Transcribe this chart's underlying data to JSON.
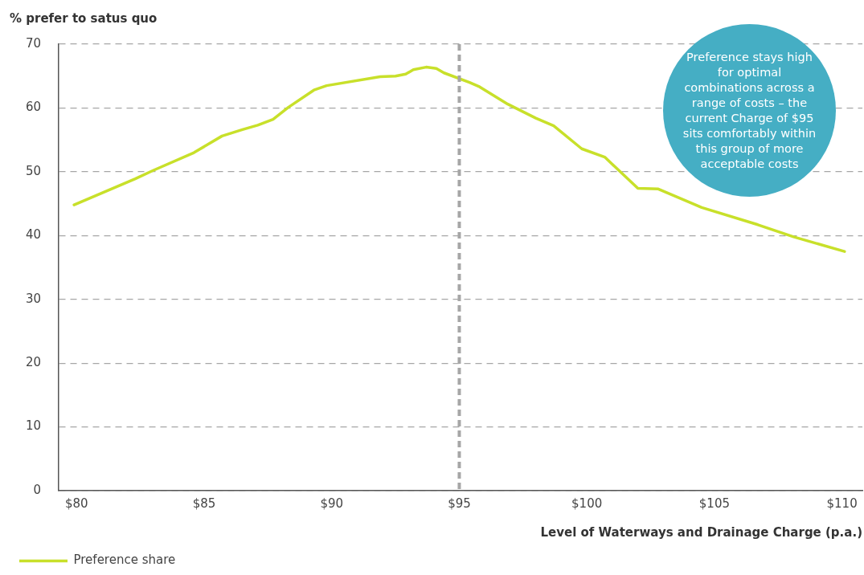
{
  "chart_data": {
    "type": "line",
    "ylabel": "% prefer to satus quo",
    "xlabel": "Level of Waterways and Drainage Charge (p.a.)",
    "x": [
      79.9,
      82.3,
      83.0,
      84.6,
      85.7,
      86.5,
      87.1,
      87.7,
      88.3,
      89.3,
      89.8,
      91.9,
      92.5,
      92.9,
      93.2,
      93.7,
      94.1,
      94.4,
      95.4,
      95.8,
      96.9,
      98.0,
      98.7,
      99.8,
      100.7,
      102.0,
      102.8,
      104.5,
      106.7,
      108.1,
      110.1
    ],
    "series": [
      {
        "name": "Preference share",
        "color": "#c8e02a",
        "values": [
          44.8,
          48.9,
          50.2,
          53.0,
          55.6,
          56.6,
          57.3,
          58.2,
          60.1,
          62.8,
          63.5,
          64.9,
          65.0,
          65.3,
          66.0,
          66.4,
          66.2,
          65.5,
          64.0,
          63.3,
          60.6,
          58.4,
          57.2,
          53.6,
          52.3,
          47.4,
          47.3,
          44.4,
          41.7,
          39.8,
          37.5
        ]
      }
    ],
    "xlim": [
      79.3,
      110.8
    ],
    "xticks": [
      {
        "value": 80,
        "label": "$80"
      },
      {
        "value": 85,
        "label": "$85"
      },
      {
        "value": 90,
        "label": "$90"
      },
      {
        "value": 95,
        "label": "$95"
      },
      {
        "value": 100,
        "label": "$100"
      },
      {
        "value": 105,
        "label": "$105"
      },
      {
        "value": 110,
        "label": "$110"
      }
    ],
    "ylim": [
      0,
      70
    ],
    "yticks": [
      0,
      10,
      20,
      30,
      40,
      50,
      60,
      70
    ],
    "grid": "y",
    "legend": "bottom left",
    "marker": "none",
    "line_style": "solid",
    "ref_lines": [
      {
        "axis": "x",
        "value": 95,
        "color": "#a6a6a6",
        "line_style": "dashed"
      }
    ],
    "annotations": [
      "Preference stays high for optimal combinations across a range of costs – the current Charge of $95 sits comfortably within this group of more acceptable costs"
    ]
  }
}
